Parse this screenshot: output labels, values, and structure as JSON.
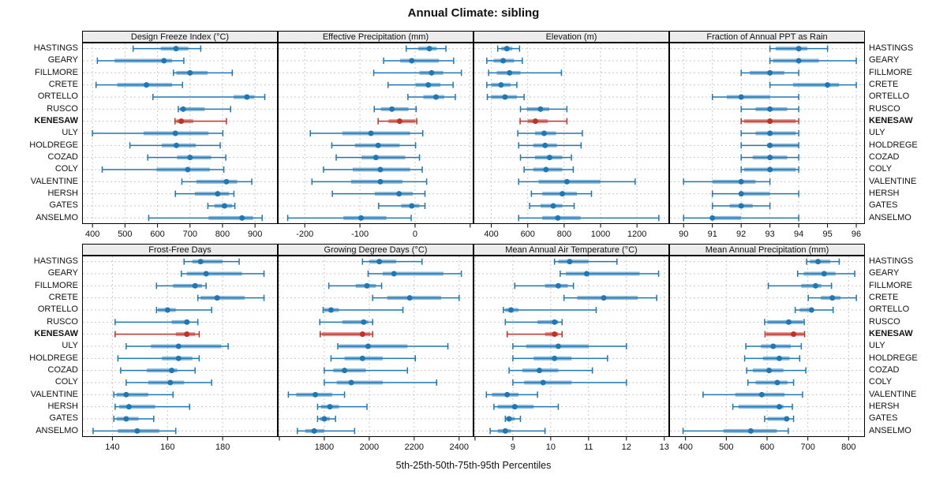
{
  "title": "Annual Climate: sibling",
  "caption": "5th-25th-50th-75th-95th Percentiles",
  "stations": [
    "HASTINGS",
    "GEARY",
    "FILLMORE",
    "CRETE",
    "ORTELLO",
    "RUSCO",
    "KENESAW",
    "ULY",
    "HOLDREGE",
    "COZAD",
    "COLY",
    "VALENTINE",
    "HERSH",
    "GATES",
    "ANSELMO"
  ],
  "highlight_station": "KENESAW",
  "percentiles": [
    5,
    25,
    50,
    75,
    95
  ],
  "colors": {
    "series": "#1f77b4",
    "highlight": "#bf3226",
    "grid": "#c9c9c9",
    "strip_bg": "#ececec",
    "panel_border": "#000000"
  },
  "chart_data": [
    {
      "type": "dotplot-range",
      "title": "Design Freeze Index (°C)",
      "xlim": [
        368,
        970
      ],
      "gridlines": [
        400,
        500,
        600,
        700,
        800,
        900
      ],
      "ticks": [
        400,
        500,
        600,
        700,
        800,
        900
      ],
      "tick_labels": [
        "400",
        "500",
        "600",
        "700",
        "800",
        "900"
      ],
      "values": [
        [
          525,
          610,
          657,
          695,
          733
        ],
        [
          415,
          468,
          620,
          645,
          681
        ],
        [
          649,
          658,
          700,
          754,
          830
        ],
        [
          411,
          476,
          566,
          645,
          677
        ],
        [
          586,
          834,
          875,
          898,
          930
        ],
        [
          664,
          669,
          679,
          745,
          825
        ],
        [
          654,
          658,
          673,
          710,
          812
        ],
        [
          400,
          557,
          655,
          757,
          801
        ],
        [
          515,
          613,
          658,
          718,
          793
        ],
        [
          570,
          660,
          700,
          765,
          810
        ],
        [
          430,
          597,
          693,
          761,
          804
        ],
        [
          675,
          720,
          812,
          845,
          890
        ],
        [
          655,
          715,
          785,
          820,
          835
        ],
        [
          755,
          775,
          806,
          830,
          838
        ],
        [
          573,
          757,
          860,
          894,
          922
        ]
      ]
    },
    {
      "type": "dotplot-range",
      "title": "Effective Precipitation (mm)",
      "xlim": [
        -249,
        106
      ],
      "gridlines": [
        -200,
        -100,
        0,
        100
      ],
      "ticks": [
        -200,
        -100,
        0,
        100
      ],
      "tick_labels": [
        "-200",
        "-100",
        "0",
        ""
      ],
      "values": [
        [
          -16,
          6,
          26,
          39,
          56
        ],
        [
          -57,
          -27,
          -6,
          43,
          70
        ],
        [
          -75,
          8,
          30,
          51,
          84
        ],
        [
          -49,
          1,
          24,
          46,
          69
        ],
        [
          -13,
          15,
          38,
          53,
          73
        ],
        [
          -74,
          -62,
          -42,
          -12,
          2
        ],
        [
          -67,
          -48,
          -28,
          0,
          3
        ],
        [
          -190,
          -132,
          -80,
          -9,
          14
        ],
        [
          -151,
          -109,
          -67,
          -28,
          1
        ],
        [
          -143,
          -97,
          -71,
          -18,
          8
        ],
        [
          -166,
          -113,
          -63,
          -9,
          13
        ],
        [
          -187,
          -116,
          -63,
          -23,
          21
        ],
        [
          -150,
          -73,
          -29,
          -4,
          18
        ],
        [
          -66,
          -25,
          -6,
          8,
          18
        ],
        [
          -231,
          -130,
          -98,
          -52,
          -7
        ]
      ]
    },
    {
      "type": "dotplot-range",
      "title": "Elevation (m)",
      "xlim": [
        302,
        1377
      ],
      "gridlines": [
        400,
        600,
        800,
        1000,
        1200
      ],
      "ticks": [
        400,
        600,
        800,
        1000,
        1200
      ],
      "tick_labels": [
        "400",
        "600",
        "800",
        "1000",
        "1200"
      ],
      "values": [
        [
          435,
          455,
          485,
          515,
          555
        ],
        [
          375,
          412,
          465,
          525,
          570
        ],
        [
          385,
          430,
          500,
          560,
          785
        ],
        [
          375,
          400,
          453,
          505,
          540
        ],
        [
          378,
          400,
          475,
          540,
          580
        ],
        [
          560,
          595,
          670,
          718,
          815
        ],
        [
          558,
          600,
          642,
          710,
          815
        ],
        [
          545,
          640,
          690,
          755,
          900
        ],
        [
          550,
          630,
          695,
          760,
          893
        ],
        [
          560,
          640,
          720,
          790,
          840
        ],
        [
          580,
          630,
          700,
          790,
          850
        ],
        [
          550,
          660,
          815,
          1000,
          1190
        ],
        [
          620,
          680,
          790,
          870,
          950
        ],
        [
          610,
          670,
          740,
          790,
          855
        ],
        [
          550,
          680,
          765,
          890,
          1320
        ]
      ]
    },
    {
      "type": "dotplot-range",
      "title": "Fraction of Annual PPT as Rain",
      "xlim": [
        89.5,
        96.3
      ],
      "gridlines": [
        90,
        91,
        92,
        93,
        94,
        95,
        96
      ],
      "ticks": [
        90,
        91,
        92,
        93,
        94,
        95,
        96
      ],
      "tick_labels": [
        "90",
        "91",
        "92",
        "93",
        "94",
        "95",
        "96"
      ],
      "values": [
        [
          93,
          93.2,
          94,
          94.3,
          95
        ],
        [
          93,
          93.1,
          94,
          94.7,
          96
        ],
        [
          92,
          92.3,
          93,
          93.5,
          94
        ],
        [
          93,
          93.8,
          95,
          95.4,
          96
        ],
        [
          91,
          91.5,
          92,
          93,
          94
        ],
        [
          92,
          92.5,
          93,
          93.6,
          94
        ],
        [
          92,
          92.1,
          93,
          93.9,
          94
        ],
        [
          92,
          92.5,
          93,
          93.9,
          94
        ],
        [
          92,
          92.9,
          93,
          94,
          94
        ],
        [
          92,
          92.4,
          93,
          93.6,
          94
        ],
        [
          92,
          92.1,
          93,
          93.9,
          94
        ],
        [
          90,
          91,
          92,
          92.5,
          93
        ],
        [
          91,
          92,
          92,
          93,
          94
        ],
        [
          91,
          91.6,
          92,
          92.4,
          93
        ],
        [
          90,
          91,
          91,
          92,
          94
        ]
      ]
    },
    {
      "type": "dotplot-range",
      "title": "Frost-Free Days",
      "xlim": [
        129,
        200
      ],
      "gridlines": [
        140,
        160,
        180
      ],
      "ticks": [
        140,
        160,
        180
      ],
      "tick_labels": [
        "140",
        "160",
        "180"
      ],
      "values": [
        [
          166,
          169,
          172,
          180,
          186
        ],
        [
          165,
          167,
          174,
          187,
          195
        ],
        [
          156,
          162,
          170,
          172.5,
          174
        ],
        [
          171,
          172,
          178,
          188,
          195
        ],
        [
          156,
          156.5,
          160,
          163,
          176
        ],
        [
          141,
          161.5,
          167,
          168,
          171
        ],
        [
          141,
          163,
          167,
          170,
          171.5
        ],
        [
          145,
          154,
          164,
          179.5,
          182
        ],
        [
          142,
          158,
          164,
          169,
          171.5
        ],
        [
          143,
          152.5,
          161.5,
          163.5,
          170
        ],
        [
          145,
          153,
          161,
          166,
          176
        ],
        [
          140.5,
          141.5,
          145,
          153,
          162
        ],
        [
          141,
          142.5,
          146,
          155.5,
          168
        ],
        [
          140.5,
          141.5,
          145,
          149.5,
          155
        ],
        [
          133,
          142,
          149,
          157,
          163
        ]
      ]
    },
    {
      "type": "dotplot-range",
      "title": "Growing Degree Days (°C)",
      "xlim": [
        1593,
        2464
      ],
      "gridlines": [
        1600,
        1800,
        2000,
        2200,
        2400
      ],
      "ticks": [
        1600,
        1800,
        2000,
        2200,
        2400
      ],
      "tick_labels": [
        "",
        "1800",
        "2000",
        "2200",
        "2400"
      ],
      "values": [
        [
          1970,
          2000,
          2045,
          2120,
          2235
        ],
        [
          1995,
          2060,
          2110,
          2330,
          2410
        ],
        [
          1820,
          1940,
          1990,
          2030,
          2055
        ],
        [
          2015,
          2080,
          2180,
          2320,
          2400
        ],
        [
          1795,
          1800,
          1830,
          1865,
          2150
        ],
        [
          1780,
          1880,
          1975,
          1995,
          2015
        ],
        [
          1782,
          1790,
          1970,
          2005,
          2015
        ],
        [
          1860,
          1865,
          1995,
          2170,
          2350
        ],
        [
          1830,
          1890,
          1970,
          2060,
          2205
        ],
        [
          1800,
          1840,
          1890,
          1985,
          2170
        ],
        [
          1800,
          1855,
          1920,
          2060,
          2300
        ],
        [
          1640,
          1675,
          1760,
          1835,
          1890
        ],
        [
          1770,
          1785,
          1825,
          1865,
          1990
        ],
        [
          1770,
          1780,
          1800,
          1825,
          1850
        ],
        [
          1680,
          1715,
          1755,
          1800,
          1935
        ]
      ]
    },
    {
      "type": "dotplot-range",
      "title": "Mean Annual Air Temperature (°C)",
      "xlim": [
        7.96,
        13.13
      ],
      "gridlines": [
        8,
        9,
        10,
        11,
        12,
        13
      ],
      "ticks": [
        8,
        9,
        10,
        11,
        12,
        13
      ],
      "tick_labels": [
        "",
        "9",
        "10",
        "11",
        "12",
        "13"
      ],
      "values": [
        [
          10.1,
          10.2,
          10.5,
          11.0,
          11.75
        ],
        [
          10.25,
          10.4,
          10.95,
          12.35,
          12.85
        ],
        [
          9.05,
          9.85,
          10.2,
          10.45,
          10.6
        ],
        [
          10.35,
          10.7,
          11.4,
          12.3,
          12.8
        ],
        [
          8.75,
          8.8,
          8.95,
          9.15,
          11.2
        ],
        [
          8.8,
          9.65,
          10.1,
          10.2,
          10.3
        ],
        [
          8.85,
          9.85,
          10.1,
          10.2,
          10.3
        ],
        [
          9.0,
          9.35,
          10.2,
          11.0,
          12.0
        ],
        [
          9.0,
          9.55,
          10.1,
          10.55,
          11.5
        ],
        [
          8.9,
          9.25,
          9.7,
          10.2,
          11.1
        ],
        [
          9.0,
          9.3,
          9.8,
          10.55,
          12.0
        ],
        [
          8.3,
          8.45,
          8.85,
          9.15,
          9.65
        ],
        [
          8.5,
          8.6,
          9.05,
          9.55,
          10.2
        ],
        [
          8.8,
          8.8,
          8.9,
          9.05,
          9.2
        ],
        [
          8.4,
          8.6,
          8.8,
          8.95,
          9.85
        ]
      ]
    },
    {
      "type": "dotplot-range",
      "title": "Mean Annual Precipitation (mm)",
      "xlim": [
        360,
        840
      ],
      "gridlines": [
        400,
        500,
        600,
        700,
        800
      ],
      "ticks": [
        400,
        500,
        600,
        700,
        800
      ],
      "tick_labels": [
        "400",
        "500",
        "600",
        "700",
        "800"
      ],
      "values": [
        [
          697,
          705,
          725,
          755,
          777
        ],
        [
          675,
          690,
          740,
          768,
          815
        ],
        [
          603,
          684,
          719,
          733,
          758
        ],
        [
          701,
          732,
          760,
          780,
          819
        ],
        [
          669,
          680,
          709,
          713,
          762
        ],
        [
          594,
          601,
          653,
          688,
          691
        ],
        [
          595,
          598,
          665,
          690,
          692
        ],
        [
          548,
          585,
          615,
          658,
          684
        ],
        [
          545,
          590,
          630,
          655,
          680
        ],
        [
          550,
          565,
          605,
          640,
          695
        ],
        [
          553,
          572,
          625,
          650,
          665
        ],
        [
          443,
          522,
          587,
          643,
          687
        ],
        [
          516,
          530,
          630,
          640,
          662
        ],
        [
          594,
          601,
          648,
          653,
          665
        ],
        [
          394,
          493,
          560,
          624,
          652
        ]
      ]
    }
  ]
}
